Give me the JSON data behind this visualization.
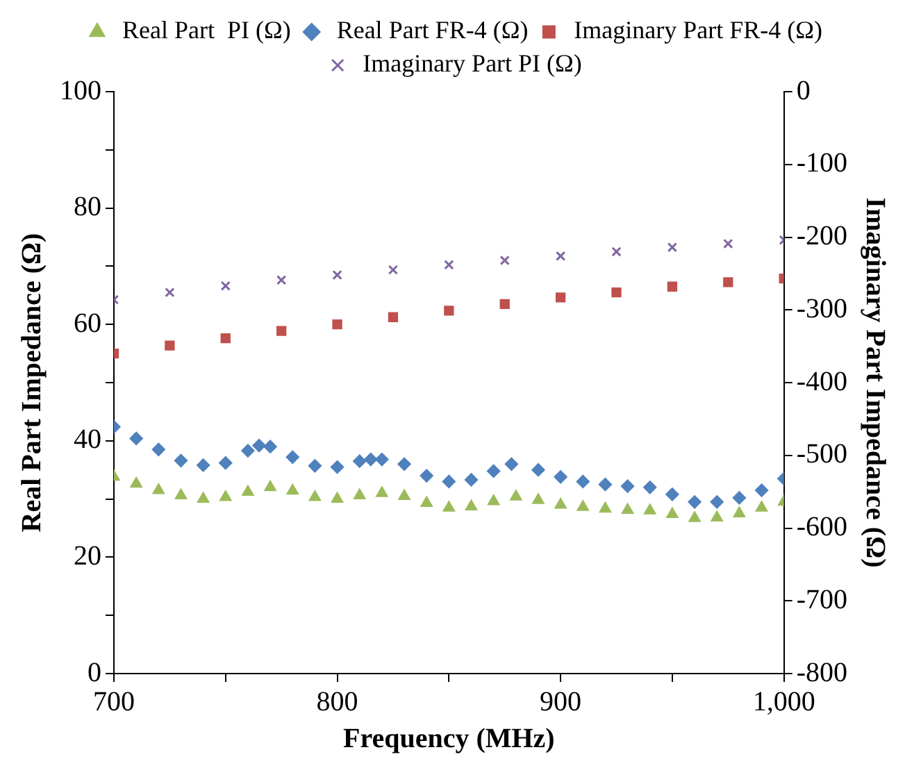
{
  "chart_data": {
    "type": "scatter",
    "xlabel": "Frequency (MHz)",
    "ylabel": "Real Part Impedance (Ω)",
    "y2label": "Imaginary Part Impedance (Ω)",
    "xlim": [
      700,
      1000
    ],
    "xticks": [
      700,
      800,
      900,
      {
        "value": 1000,
        "label": "1,000"
      }
    ],
    "ylim": [
      0,
      100
    ],
    "yticks": [
      0,
      20,
      40,
      60,
      80,
      100
    ],
    "y2lim": [
      -800,
      0
    ],
    "y2ticks": [
      -800,
      -700,
      -600,
      -500,
      -400,
      -300,
      -200,
      -100,
      0
    ],
    "grid": false,
    "legend": "top",
    "series": [
      {
        "name": "Real Part  PI (Ω)",
        "color": "#9bbb59",
        "marker": "triangle",
        "x": [
          700,
          710,
          720,
          730,
          740,
          750,
          760,
          770,
          780,
          790,
          800,
          810,
          820,
          830,
          840,
          850,
          860,
          870,
          880,
          890,
          900,
          910,
          920,
          930,
          940,
          950,
          960,
          970,
          980,
          990,
          1000
        ],
        "values": [
          33.8,
          32.6,
          31.5,
          30.6,
          30,
          30.3,
          31.2,
          32,
          31.4,
          30.3,
          30,
          30.6,
          31,
          30.5,
          29.3,
          28.5,
          28.7,
          29.6,
          30.4,
          29.8,
          29,
          28.6,
          28.3,
          28.1,
          28,
          27.4,
          26.7,
          26.8,
          27.5,
          28.5,
          29.5
        ]
      },
      {
        "name": "Real Part FR-4 (Ω)",
        "color": "#4f81bd",
        "marker": "diamond",
        "x": [
          700,
          710,
          720,
          730,
          740,
          750,
          760,
          765,
          770,
          780,
          790,
          800,
          810,
          815,
          820,
          830,
          840,
          850,
          860,
          870,
          878,
          890,
          900,
          910,
          920,
          930,
          940,
          950,
          960,
          970,
          980,
          990,
          1000
        ],
        "values": [
          42.4,
          40.4,
          38.5,
          36.6,
          35.8,
          36.2,
          38.3,
          39.2,
          39,
          37.2,
          35.7,
          35.5,
          36.5,
          36.8,
          36.8,
          36,
          34,
          33,
          33.3,
          34.8,
          36,
          35,
          33.8,
          33,
          32.5,
          32.2,
          32,
          30.8,
          29.5,
          29.5,
          30.2,
          31.5,
          33.5
        ]
      },
      {
        "name": "Imaginary Part FR-4 (Ω)",
        "color": "#c0504d",
        "marker": "square",
        "axis": "y2",
        "x": [
          700,
          725,
          750,
          775,
          800,
          825,
          850,
          875,
          900,
          925,
          950,
          975,
          1000
        ],
        "values": [
          -360,
          -349,
          -339,
          -329,
          -320,
          -310,
          -301,
          -292,
          -283,
          -276,
          -268,
          -262,
          -257
        ]
      },
      {
        "name": "Imaginary Part PI (Ω)",
        "color": "#8064a2",
        "marker": "cross",
        "axis": "y2",
        "x": [
          700,
          725,
          750,
          775,
          800,
          825,
          850,
          875,
          900,
          925,
          950,
          975,
          1000
        ],
        "values": [
          -286,
          -276,
          -267,
          -259,
          -252,
          -245,
          -238,
          -232,
          -226,
          -220,
          -214,
          -209,
          -204
        ]
      }
    ]
  }
}
